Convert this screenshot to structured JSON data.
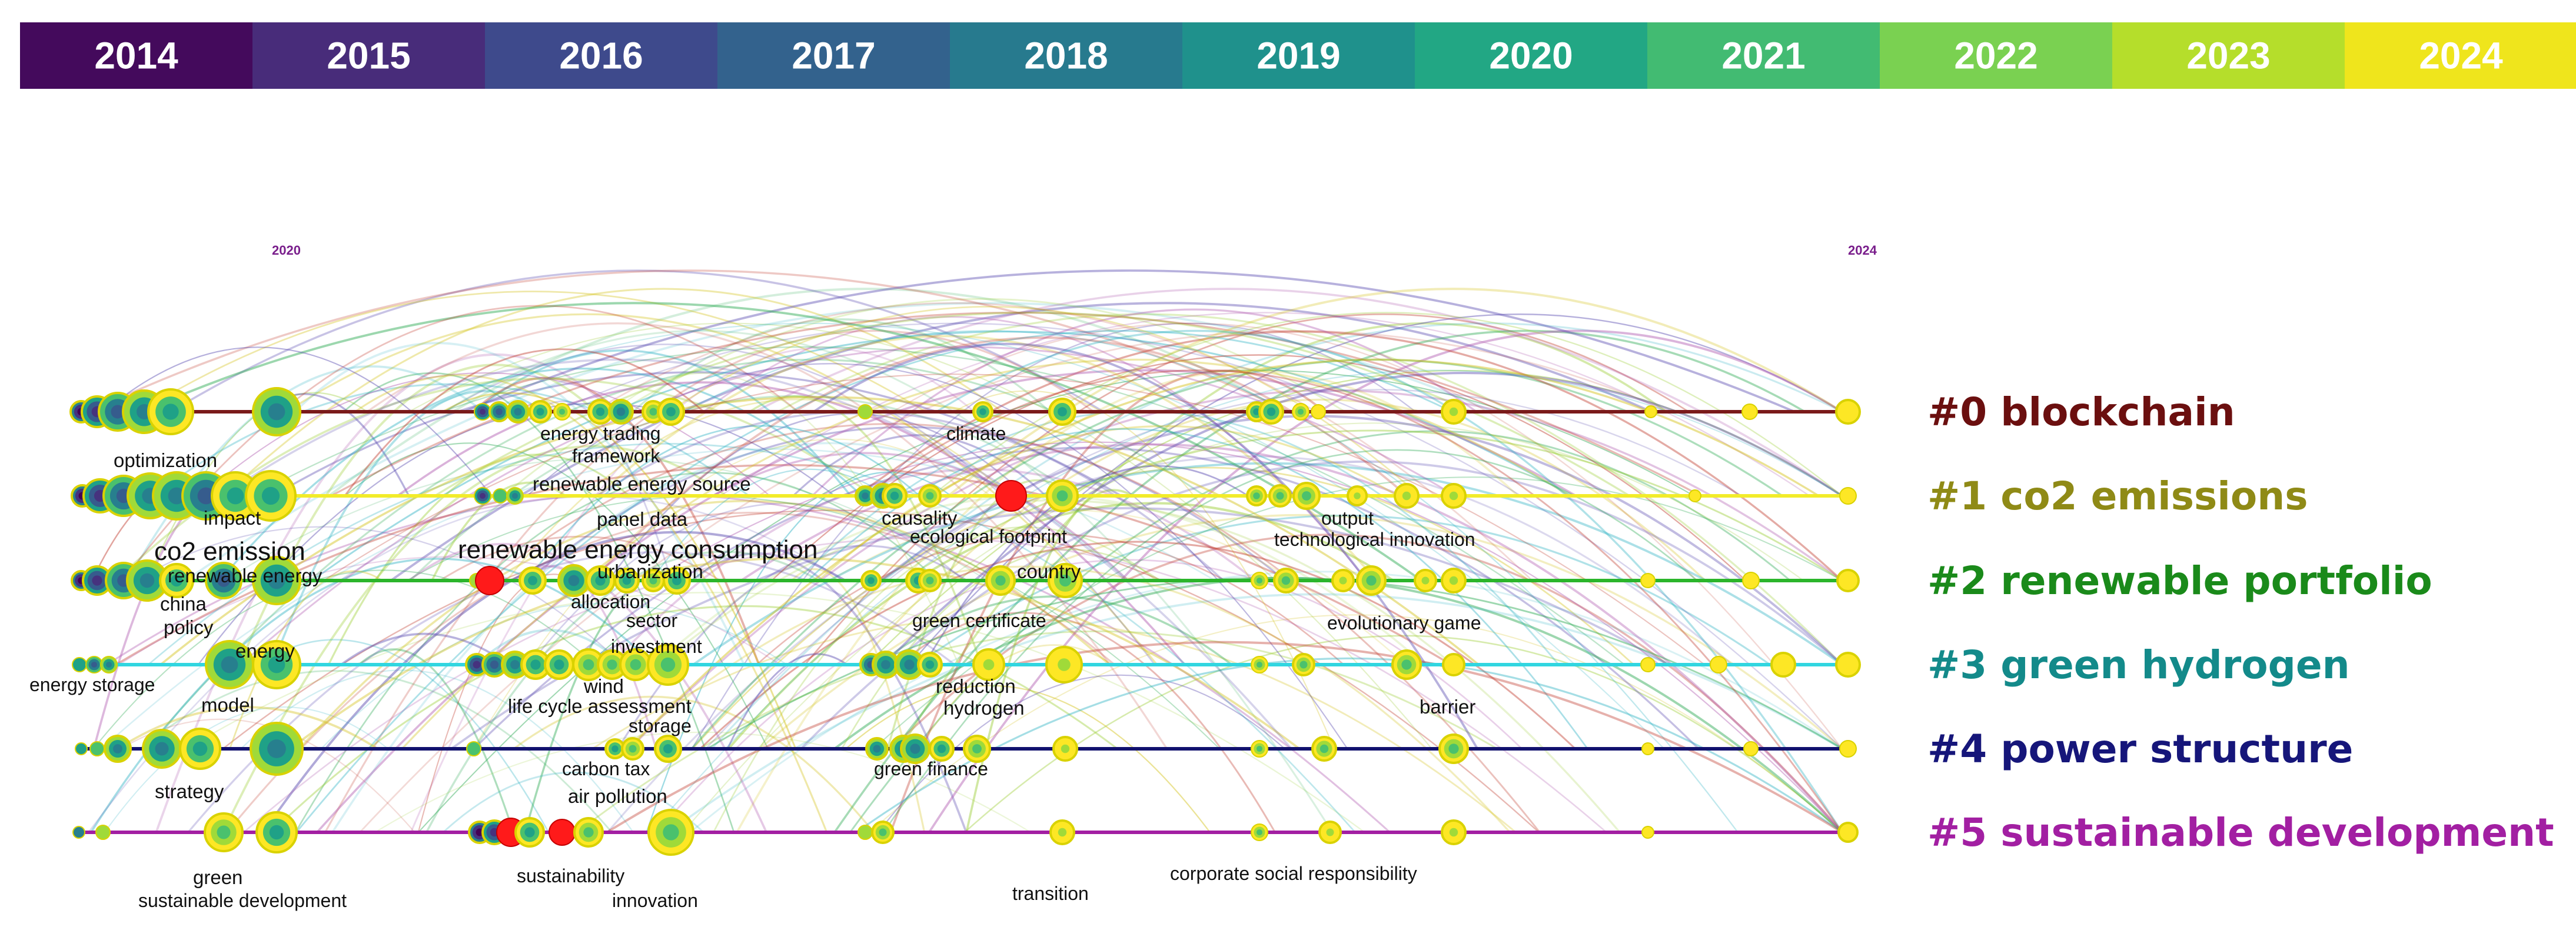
{
  "years": [
    "2014",
    "2015",
    "2016",
    "2017",
    "2018",
    "2019",
    "2020",
    "2021",
    "2022",
    "2023",
    "2024"
  ],
  "year_colors": [
    "#440a5c",
    "#482c7a",
    "#3e4a8c",
    "#33628d",
    "#277a8e",
    "#1f918c",
    "#22a784",
    "#42bb72",
    "#7ad151",
    "#b5de2b",
    "#efe51c"
  ],
  "year_markers": [
    "2020",
    "2024"
  ],
  "clusters": [
    {
      "label": "#0 blockchain",
      "color": "#6b0f0f"
    },
    {
      "label": "#1 co2 emissions",
      "color": "#8f8a16"
    },
    {
      "label": "#2 renewable portfolio",
      "color": "#1a8a1a"
    },
    {
      "label": "#3 green hydrogen",
      "color": "#138a8a"
    },
    {
      "label": "#4 power structure",
      "color": "#16167a"
    },
    {
      "label": "#5 sustainable development",
      "color": "#a21fa2"
    }
  ],
  "keywords": [
    "optimization",
    "energy trading",
    "framework",
    "climate",
    "renewable energy source",
    "impact",
    "panel data",
    "causality",
    "ecological footprint",
    "output",
    "technological innovation",
    "co2 emission",
    "renewable energy consumption",
    "renewable energy",
    "urbanization",
    "country",
    "china",
    "allocation",
    "sector",
    "green certificate",
    "evolutionary game",
    "policy",
    "investment",
    "energy",
    "energy storage",
    "wind",
    "reduction",
    "model",
    "life cycle assessment",
    "hydrogen",
    "barrier",
    "storage",
    "carbon tax",
    "green finance",
    "strategy",
    "air pollution",
    "green",
    "sustainability",
    "sustainable development",
    "innovation",
    "corporate social responsibility",
    "transition"
  ]
}
